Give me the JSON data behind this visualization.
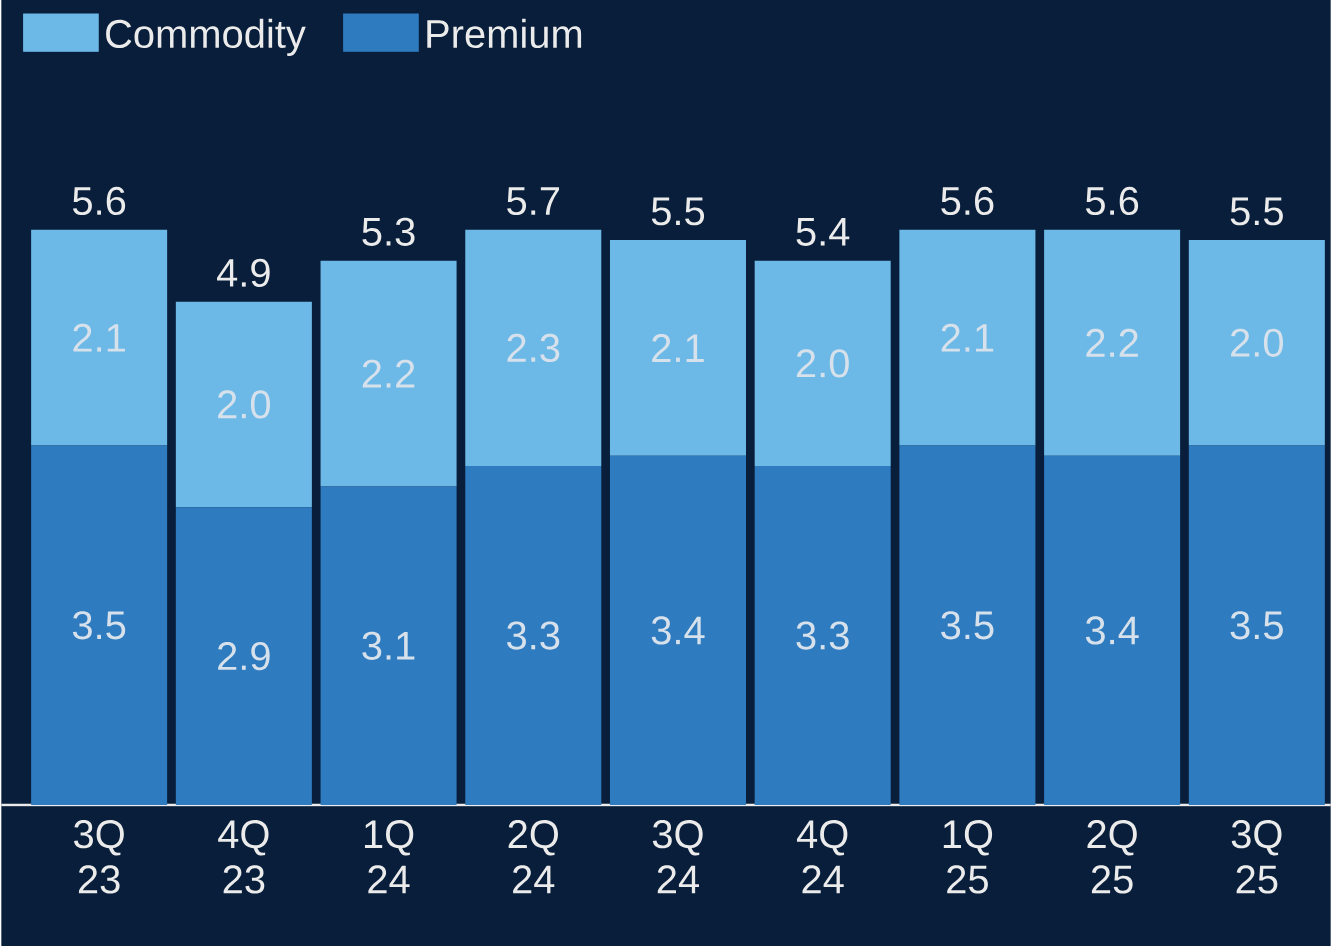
{
  "chart_data": {
    "type": "bar",
    "stacked": true,
    "legend": "top left",
    "categories": [
      "3Q 23",
      "4Q 23",
      "1Q 24",
      "2Q 24",
      "3Q 24",
      "4Q 24",
      "1Q 25",
      "2Q 25",
      "3Q 25"
    ],
    "series": [
      {
        "name": "Premium",
        "color": "#2e7bbf",
        "values": [
          3.5,
          2.9,
          3.1,
          3.3,
          3.4,
          3.3,
          3.5,
          3.4,
          3.5
        ],
        "value_labels": [
          "3.5",
          "2.9",
          "3.1",
          "3.3",
          "3.4",
          "3.3",
          "3.5",
          "3.4",
          "3.5"
        ]
      },
      {
        "name": "Commodity",
        "color": "#6cb9e7",
        "values": [
          2.1,
          2.0,
          2.2,
          2.3,
          2.1,
          2.0,
          2.1,
          2.2,
          2.0
        ],
        "value_labels": [
          "2.1",
          "2.0",
          "2.2",
          "2.3",
          "2.1",
          "2.0",
          "2.1",
          "2.2",
          "2.0"
        ]
      }
    ],
    "totals": [
      "5.6",
      "4.9",
      "5.3",
      "5.7",
      "5.5",
      "5.4",
      "5.6",
      "5.6",
      "5.5"
    ]
  }
}
